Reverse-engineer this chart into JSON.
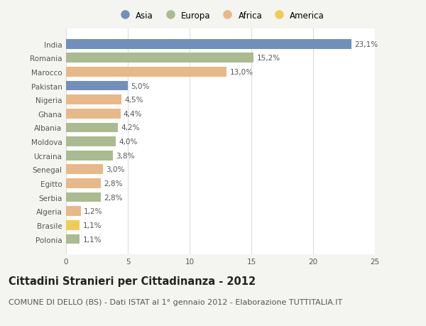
{
  "countries": [
    "India",
    "Romania",
    "Marocco",
    "Pakistan",
    "Nigeria",
    "Ghana",
    "Albania",
    "Moldova",
    "Ucraina",
    "Senegal",
    "Egitto",
    "Serbia",
    "Algeria",
    "Brasile",
    "Polonia"
  ],
  "values": [
    23.1,
    15.2,
    13.0,
    5.0,
    4.5,
    4.4,
    4.2,
    4.0,
    3.8,
    3.0,
    2.8,
    2.8,
    1.2,
    1.1,
    1.1
  ],
  "labels": [
    "23,1%",
    "15,2%",
    "13,0%",
    "5,0%",
    "4,5%",
    "4,4%",
    "4,2%",
    "4,0%",
    "3,8%",
    "3,0%",
    "2,8%",
    "2,8%",
    "1,2%",
    "1,1%",
    "1,1%"
  ],
  "continents": [
    "Asia",
    "Europa",
    "Africa",
    "Asia",
    "Africa",
    "Africa",
    "Europa",
    "Europa",
    "Europa",
    "Africa",
    "Africa",
    "Europa",
    "Africa",
    "America",
    "Europa"
  ],
  "continent_colors": {
    "Asia": "#7090bb",
    "Europa": "#aabb90",
    "Africa": "#e8b888",
    "America": "#f0cc55"
  },
  "legend_order": [
    "Asia",
    "Europa",
    "Africa",
    "America"
  ],
  "title": "Cittadini Stranieri per Cittadinanza - 2012",
  "subtitle": "COMUNE DI DELLO (BS) - Dati ISTAT al 1° gennaio 2012 - Elaborazione TUTTITALIA.IT",
  "xlim": [
    0,
    25
  ],
  "xticks": [
    0,
    5,
    10,
    15,
    20,
    25
  ],
  "bg_color": "#f4f4f0",
  "plot_bg_color": "#ffffff",
  "grid_color": "#dddddd",
  "text_color": "#555555",
  "title_fontsize": 10.5,
  "subtitle_fontsize": 8,
  "label_fontsize": 7.5,
  "tick_fontsize": 7.5,
  "legend_fontsize": 8.5,
  "bar_height": 0.7
}
